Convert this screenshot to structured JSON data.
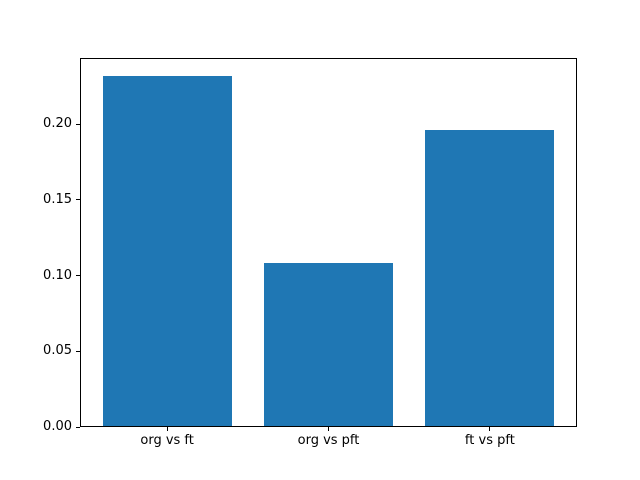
{
  "chart_data": {
    "type": "bar",
    "categories": [
      "org vs ft",
      "org vs pft",
      "ft vs pft"
    ],
    "values": [
      0.232,
      0.108,
      0.196
    ],
    "title": "",
    "xlabel": "",
    "ylabel": "",
    "ylim": [
      0,
      0.2436
    ],
    "yticks": [
      0,
      0.05,
      0.1,
      0.15,
      0.2
    ],
    "ytick_labels": [
      "0.00",
      "0.05",
      "0.10",
      "0.15",
      "0.20"
    ],
    "bar_color": "#1f77b4",
    "bar_width": 0.8,
    "background_color": "#ffffff",
    "axis_color": "#000000",
    "grid": false,
    "legend": "none"
  }
}
